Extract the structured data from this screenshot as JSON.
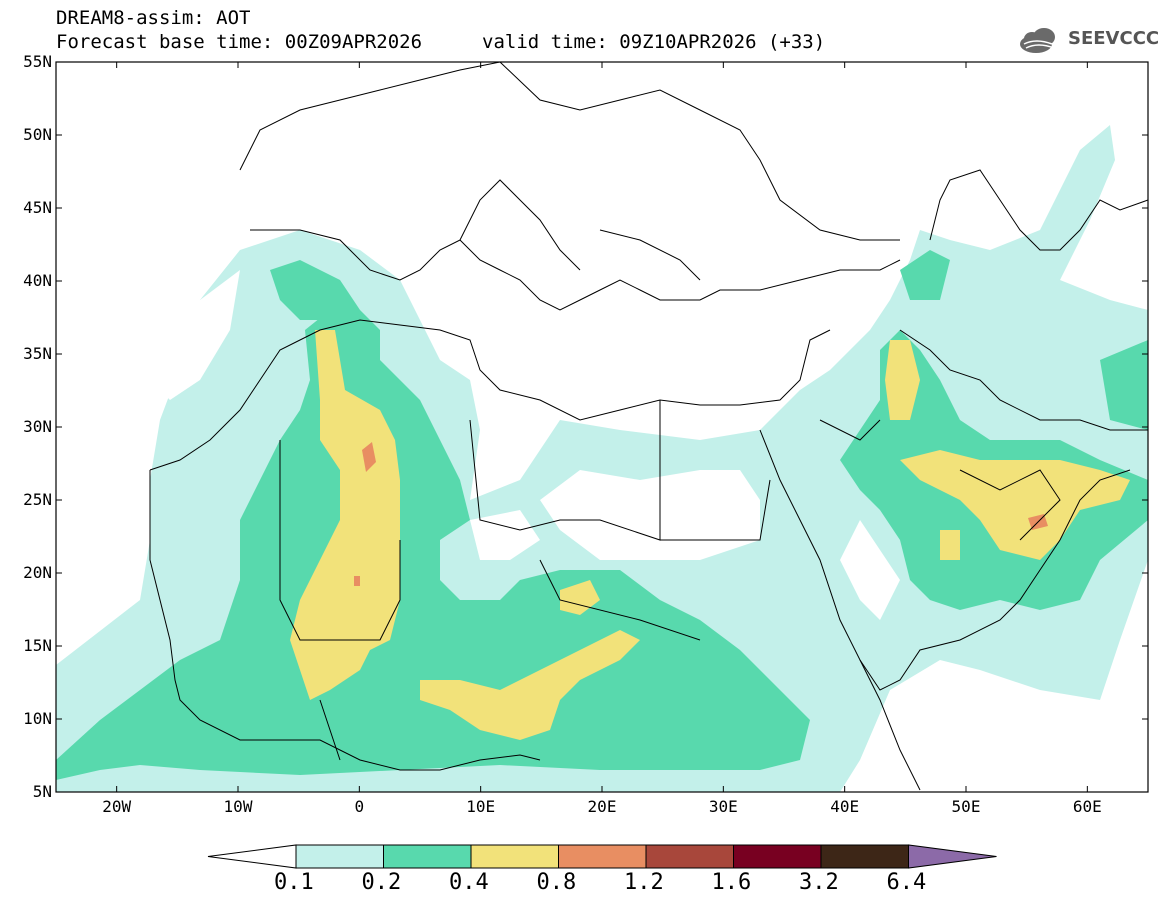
{
  "header": {
    "line1": "DREAM8-assim: AOT",
    "line2a": "Forecast base time: 00Z09APR2026",
    "line2b": "valid time: 09Z10APR2026 (+33)"
  },
  "logo": {
    "text": "SEEVCCC",
    "icon": "cloud-icon"
  },
  "map": {
    "lat_labels": [
      "55N",
      "50N",
      "45N",
      "40N",
      "35N",
      "30N",
      "25N",
      "20N",
      "15N",
      "10N",
      "5N"
    ],
    "lon_labels": [
      "20W",
      "10W",
      "0",
      "10E",
      "20E",
      "30E",
      "40E",
      "50E",
      "60E"
    ],
    "lat_range": [
      5,
      55
    ],
    "lon_range": [
      -25,
      65
    ]
  },
  "colorbar": {
    "labels": [
      "0.1",
      "0.2",
      "0.4",
      "0.8",
      "1.2",
      "1.6",
      "3.2",
      "6.4"
    ],
    "colors": [
      "#ffffff",
      "#c3f0ea",
      "#58d9ad",
      "#f2e27a",
      "#e88e62",
      "#a8473b",
      "#780021",
      "#3d2617",
      "#8c6aa8"
    ]
  }
}
